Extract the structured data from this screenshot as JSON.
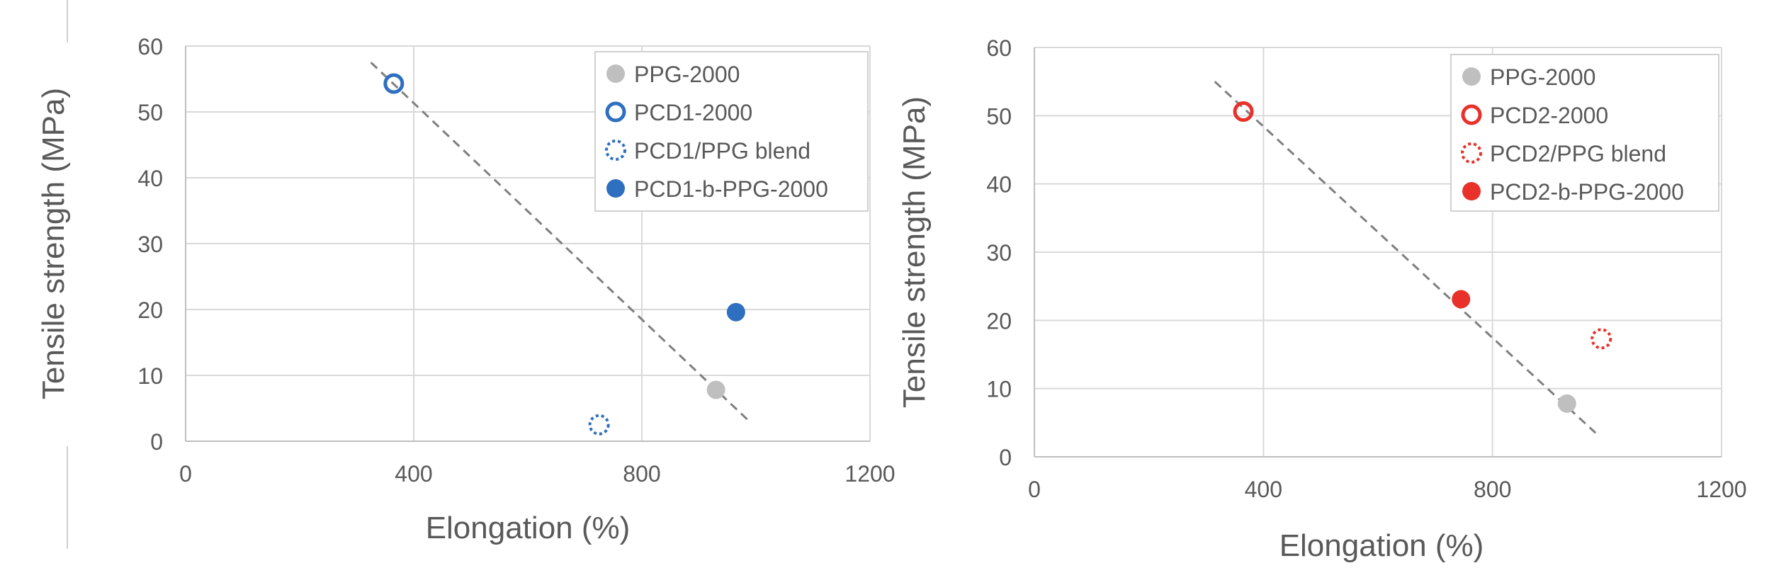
{
  "colors": {
    "blue": "#2e6fbf",
    "red": "#e8312a",
    "gray": "#bfbfbf",
    "grid": "#d9d9d9",
    "trend": "#7f7f7f"
  },
  "chart_data": [
    {
      "type": "scatter",
      "xlabel": "Elongation (%)",
      "ylabel": "Tensile strength (MPa)",
      "xlim": [
        0,
        1200
      ],
      "ylim": [
        0,
        60
      ],
      "xticks": [
        "0",
        "400",
        "800",
        "1200"
      ],
      "yticks": [
        "0",
        "10",
        "20",
        "30",
        "40",
        "50",
        "60"
      ],
      "grid": true,
      "legend": "top-right",
      "series": [
        {
          "name": "PPG-2000",
          "marker": "filled",
          "color": "#bfbfbf",
          "x": [
            930
          ],
          "y": [
            7.8
          ]
        },
        {
          "name": "PCD1-2000",
          "marker": "open",
          "color": "#2e6fbf",
          "x": [
            365
          ],
          "y": [
            54.3
          ]
        },
        {
          "name": "PCD1/PPG blend",
          "marker": "dotted",
          "color": "#2e6fbf",
          "x": [
            725
          ],
          "y": [
            2.5
          ]
        },
        {
          "name": "PCD1-b-PPG-2000",
          "marker": "filled",
          "color": "#2e6fbf",
          "x": [
            965
          ],
          "y": [
            19.6
          ]
        }
      ],
      "trendline": {
        "x": [
          325,
          985
        ],
        "y": [
          57.5,
          3.3
        ]
      }
    },
    {
      "type": "scatter",
      "xlabel": "Elongation (%)",
      "ylabel": "Tensile strength (MPa)",
      "xlim": [
        0,
        1200
      ],
      "ylim": [
        0,
        60
      ],
      "xticks": [
        "0",
        "400",
        "800",
        "1200"
      ],
      "yticks": [
        "0",
        "10",
        "20",
        "30",
        "40",
        "50",
        "60"
      ],
      "grid": true,
      "legend": "top-right",
      "series": [
        {
          "name": "PPG-2000",
          "marker": "filled",
          "color": "#bfbfbf",
          "x": [
            930
          ],
          "y": [
            7.8
          ]
        },
        {
          "name": "PCD2-2000",
          "marker": "open",
          "color": "#e8312a",
          "x": [
            365
          ],
          "y": [
            50.6
          ]
        },
        {
          "name": "PCD2/PPG blend",
          "marker": "dotted",
          "color": "#e8312a",
          "x": [
            990
          ],
          "y": [
            17.3
          ]
        },
        {
          "name": "PCD2-b-PPG-2000",
          "marker": "filled",
          "color": "#e8312a",
          "x": [
            745
          ],
          "y": [
            23.1
          ]
        }
      ],
      "trendline": {
        "x": [
          315,
          980
        ],
        "y": [
          55,
          3.5
        ]
      }
    }
  ]
}
